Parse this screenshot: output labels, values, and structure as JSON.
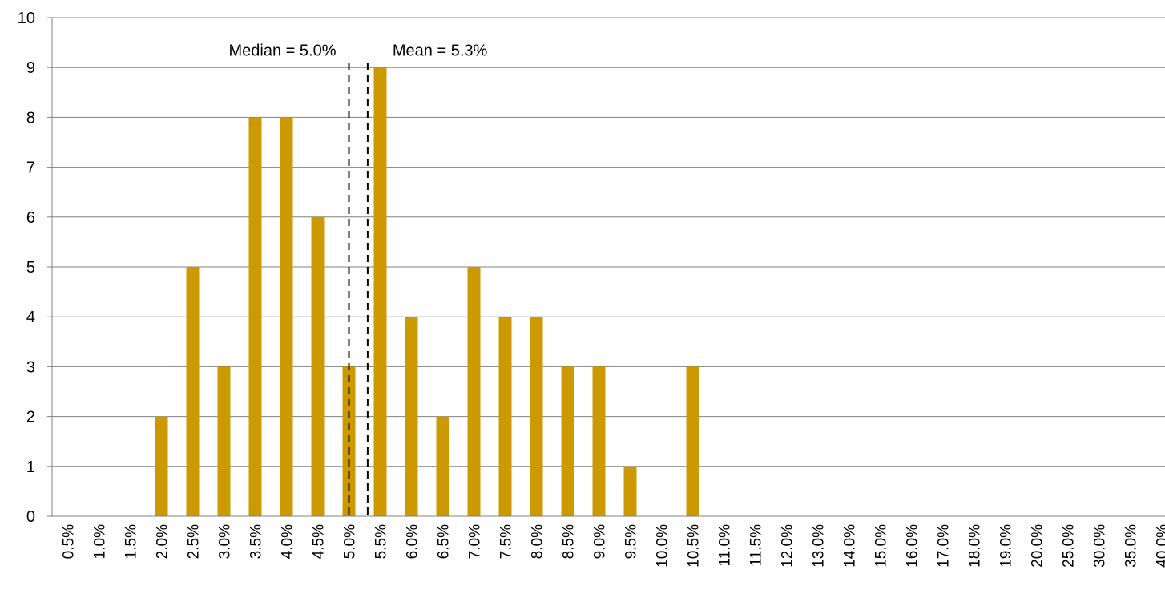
{
  "chart_data": {
    "type": "bar",
    "title": "",
    "xlabel": "",
    "ylabel": "",
    "ylim": [
      0,
      10
    ],
    "yticks": [
      0,
      1,
      2,
      3,
      4,
      5,
      6,
      7,
      8,
      9,
      10
    ],
    "grid": true,
    "legend": "none",
    "categories": [
      "0.5%",
      "1.0%",
      "1.5%",
      "2.0%",
      "2.5%",
      "3.0%",
      "3.5%",
      "4.0%",
      "4.5%",
      "5.0%",
      "5.5%",
      "6.0%",
      "6.5%",
      "7.0%",
      "7.5%",
      "8.0%",
      "8.5%",
      "9.0%",
      "9.5%",
      "10.0%",
      "10.5%",
      "11.0%",
      "11.5%",
      "12.0%",
      "13.0%",
      "14.0%",
      "15.0%",
      "16.0%",
      "17.0%",
      "18.0%",
      "19.0%",
      "20.0%",
      "25.0%",
      "30.0%",
      "35.0%",
      "40.0%"
    ],
    "values": [
      0,
      0,
      0,
      2,
      5,
      3,
      8,
      8,
      6,
      3,
      9,
      4,
      2,
      5,
      4,
      4,
      3,
      3,
      1,
      0,
      3,
      0,
      0,
      0,
      0,
      0,
      0,
      0,
      0,
      0,
      0,
      0,
      0,
      0,
      0,
      0
    ],
    "annotations": [
      {
        "label": "Median = 5.0%",
        "x_category": "5.0%",
        "offset": 0,
        "label_side": "left",
        "style": "dashed"
      },
      {
        "label": "Mean = 5.3%",
        "x_category": "5.0%",
        "offset": 0.6,
        "label_side": "right",
        "style": "dashed"
      }
    ],
    "colors": {
      "bar": "#CC9900",
      "grid": "#808080",
      "axis": "#808080",
      "reference_line": "#000000"
    }
  }
}
